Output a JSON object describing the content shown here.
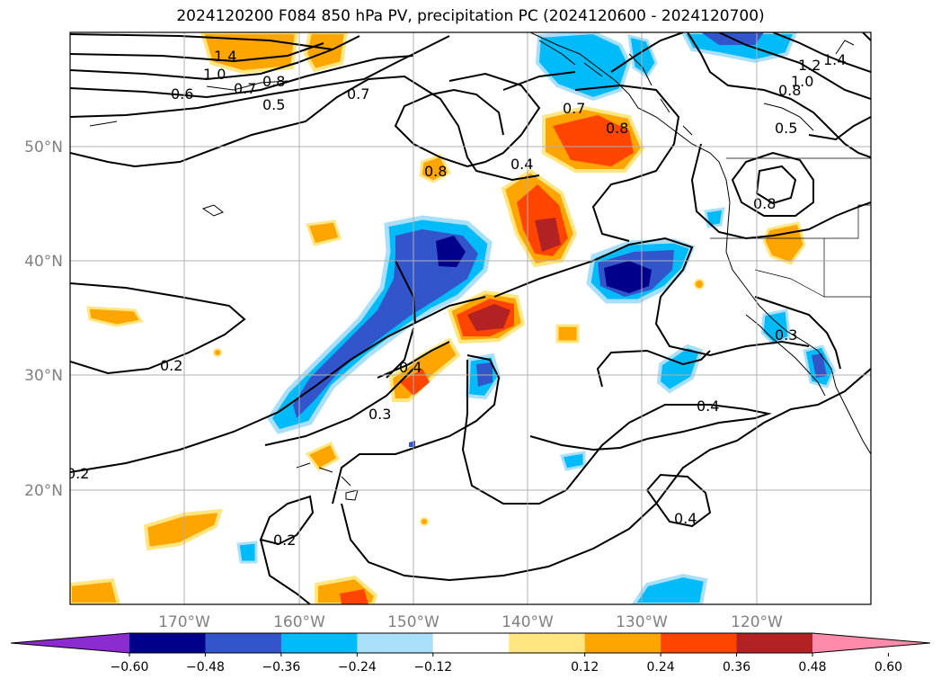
{
  "title": "2024120200 F084 850 hPa PV, precipitation PC (2024120600 - 2024120700)",
  "map": {
    "lon_ticks": [
      "170°W",
      "160°W",
      "150°W",
      "140°W",
      "130°W",
      "120°W"
    ],
    "lat_ticks": [
      "50°N",
      "40°N",
      "30°N",
      "20°N"
    ],
    "contour_labels": [
      "1.4",
      "1.0",
      "0.8",
      "0.7",
      "0.6",
      "0.5",
      "0.7",
      "0.8",
      "0.4",
      "0.7",
      "0.8",
      "0.2",
      "0.4",
      "0.3",
      "0.4",
      "0.2",
      "0.2",
      "0.4",
      "0.3",
      "1.2",
      "1.0",
      "0.8",
      "0.5",
      "1.4",
      "0.8"
    ]
  },
  "colorbar": {
    "ticks": [
      "−0.60",
      "−0.48",
      "−0.36",
      "−0.24",
      "−0.12",
      "0.12",
      "0.24",
      "0.36",
      "0.48",
      "0.60"
    ],
    "colors": [
      "#8c2bcf",
      "#00008b",
      "#3355cc",
      "#00bbf9",
      "#aadffa",
      "#ffffff",
      "#ffe680",
      "#ffa500",
      "#ff4500",
      "#b22222",
      "#ff8aaa"
    ]
  }
}
